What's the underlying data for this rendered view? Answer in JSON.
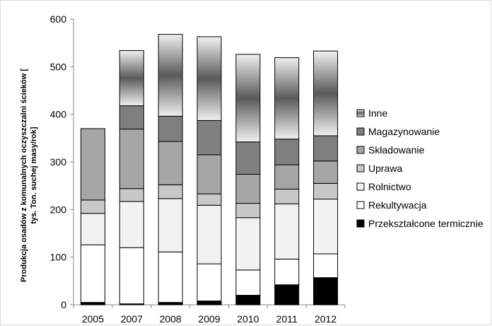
{
  "chart_data": {
    "type": "bar",
    "stacked": true,
    "title": "",
    "xlabel": "",
    "ylabel": "Produkcja osadów z komunalnych oczyszczalni ścieków [ tys. Ton. suchej masy/rok]",
    "ylabel_lines": [
      "Produkcja osadów z komunalnych oczyszczalni ścieków [",
      "tys. Ton. suchej masy/rok]"
    ],
    "categories": [
      "2005",
      "2007",
      "2008",
      "2009",
      "2010",
      "2011",
      "2012"
    ],
    "ylim": [
      0,
      600
    ],
    "yticks": [
      0,
      100,
      200,
      300,
      400,
      500,
      600
    ],
    "grid": false,
    "legend_position": "right",
    "series": [
      {
        "name": "Przekształcone termicznie",
        "color": "#000000",
        "fill": "solid",
        "values": [
          5,
          2,
          5,
          8,
          20,
          42,
          57
        ]
      },
      {
        "name": "Rekultywacja",
        "color": "#ffffff",
        "fill": "solid",
        "values": [
          121,
          118,
          106,
          78,
          53,
          54,
          50
        ]
      },
      {
        "name": "Rolnictwo",
        "color": "#f2f2f2",
        "fill": "solid",
        "values": [
          66,
          97,
          112,
          123,
          110,
          116,
          115
        ]
      },
      {
        "name": "Uprawa",
        "color": "#c8c8c8",
        "fill": "solid",
        "values": [
          28,
          27,
          29,
          24,
          30,
          31,
          33
        ]
      },
      {
        "name": "Składowanie",
        "color": "#a6a6a6",
        "fill": "solid",
        "values": [
          150,
          125,
          91,
          82,
          61,
          51,
          47
        ]
      },
      {
        "name": "Magazynowanie",
        "color": "#7f7f7f",
        "fill": "solid",
        "values": [
          0,
          49,
          53,
          72,
          68,
          54,
          53
        ]
      },
      {
        "name": "Inne",
        "color": "#595959",
        "fill": "gradient",
        "values": [
          0,
          116,
          172,
          176,
          184,
          171,
          178
        ]
      }
    ]
  }
}
